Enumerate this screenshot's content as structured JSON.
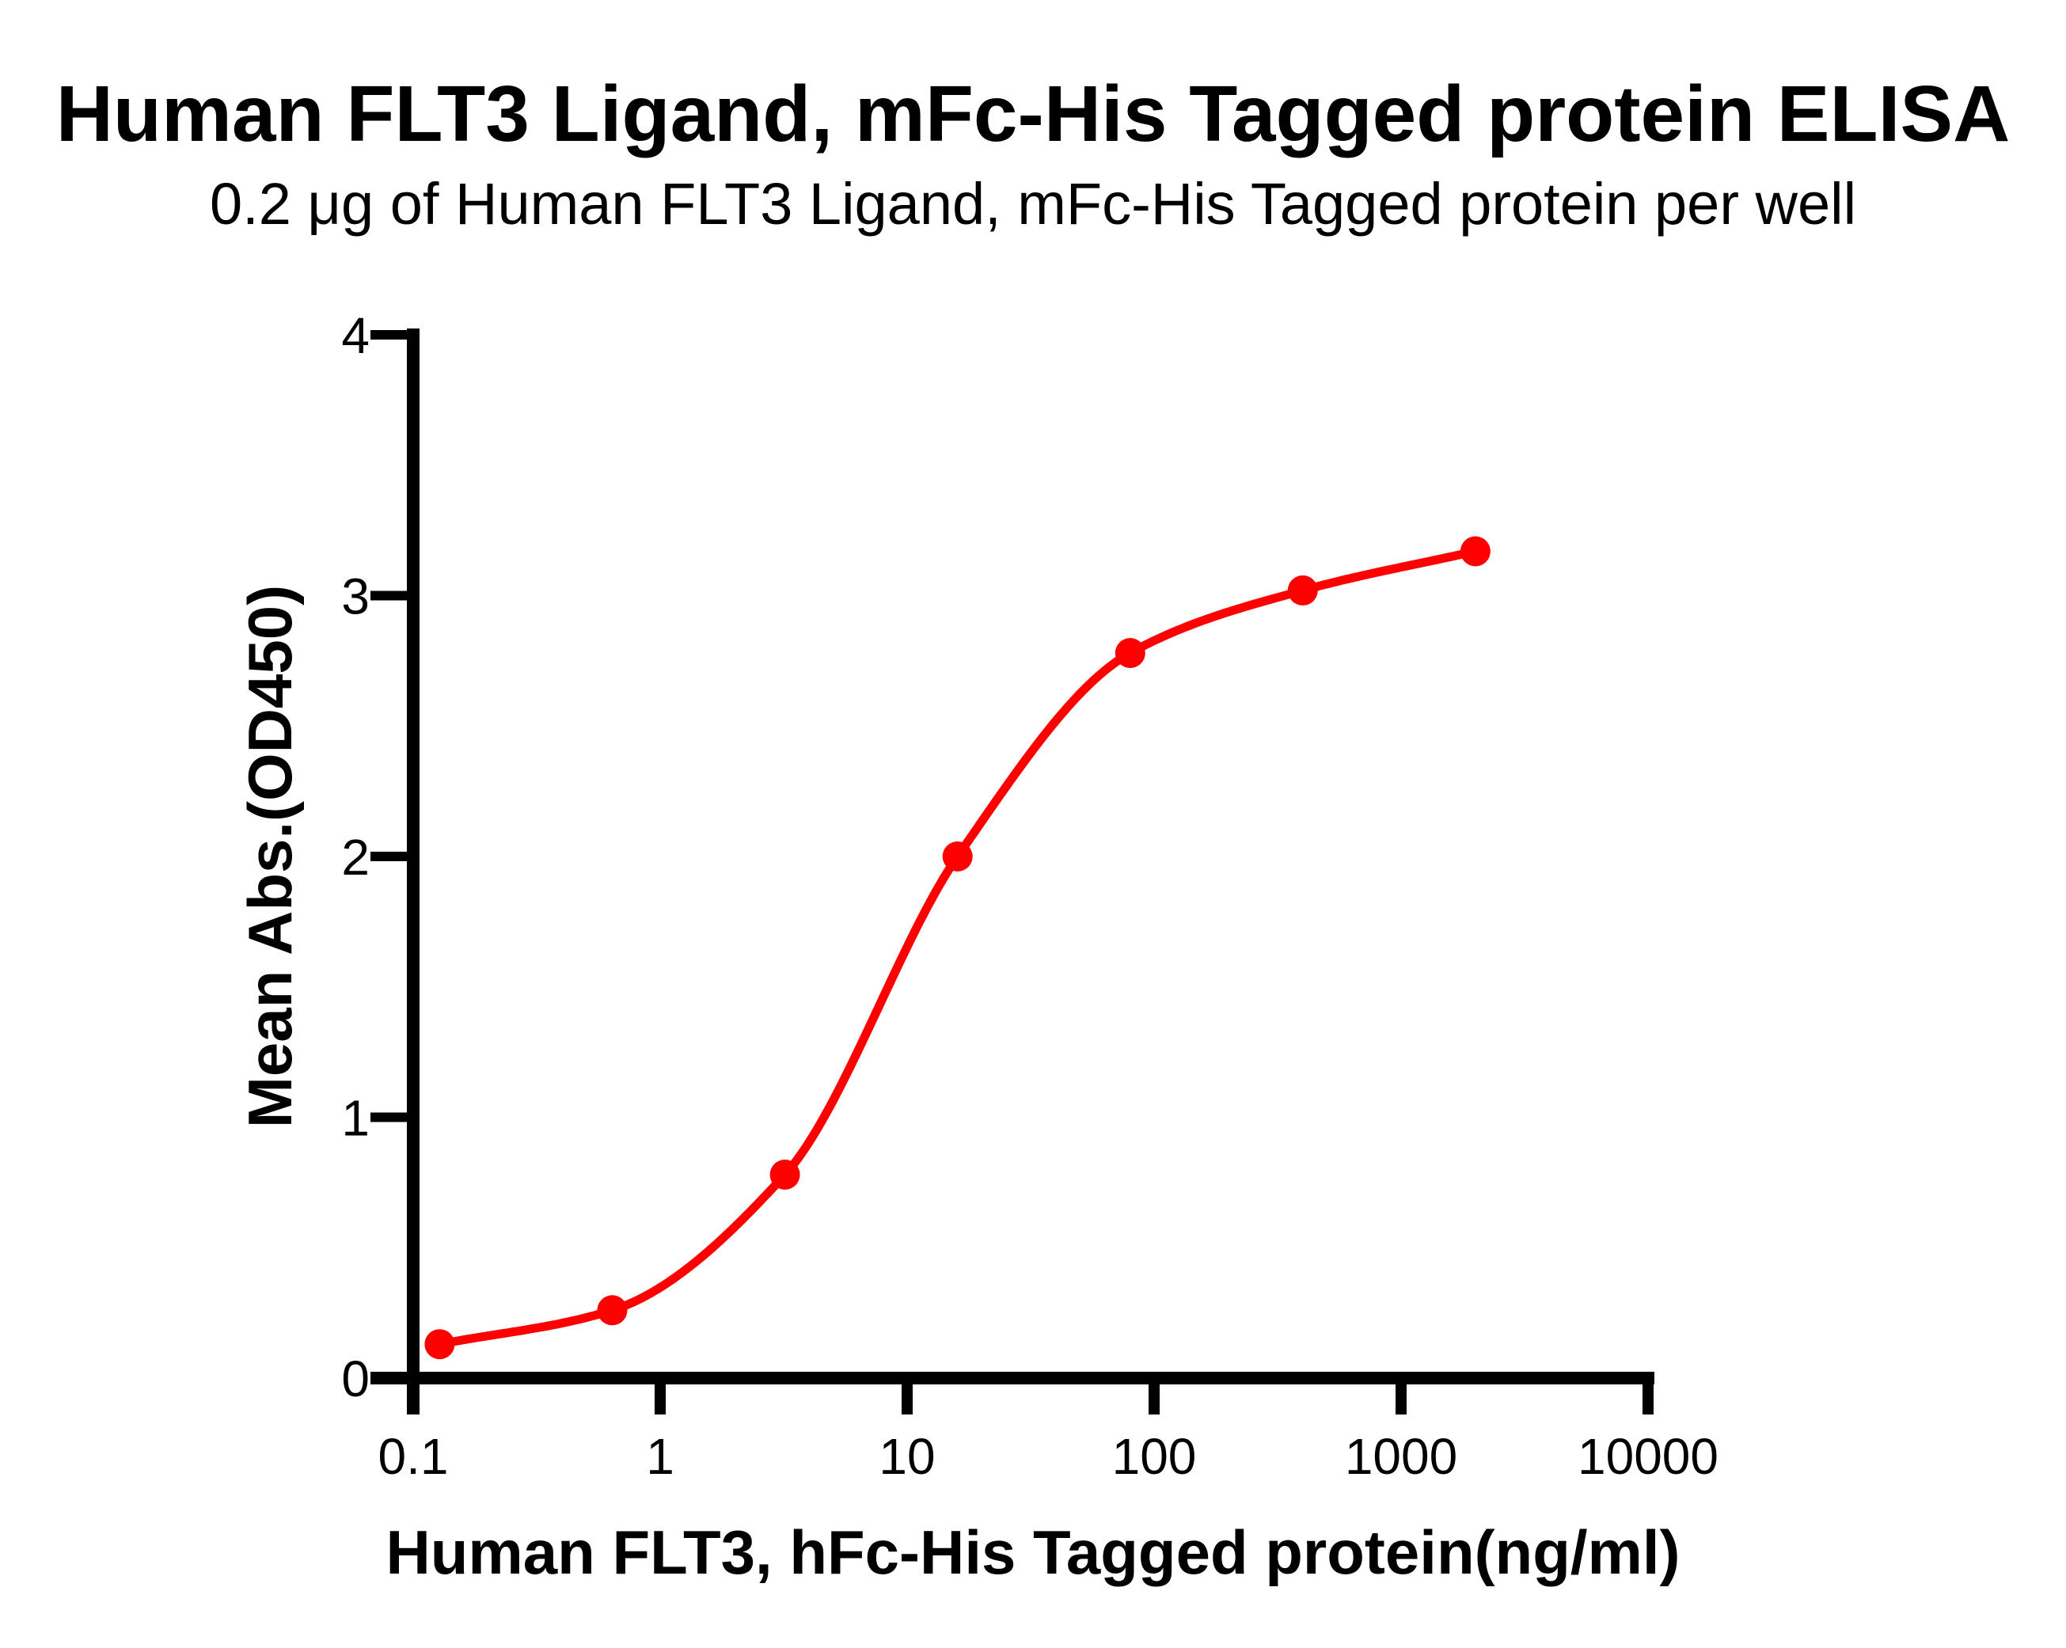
{
  "page": {
    "background_color": "#ffffff",
    "text_color": "#000000",
    "accent_color": "#ff0000"
  },
  "chart_data": {
    "type": "scatter",
    "title": "Human FLT3 Ligand, mFc-His Tagged protein ELISA",
    "subtitle": "0.2 μg of Human FLT3 Ligand, mFc-His Tagged protein per well",
    "xlabel": "Human FLT3, hFc-His Tagged protein(ng/ml)",
    "ylabel": "Mean Abs.(OD450)",
    "x_scale": "log10",
    "xlim": [
      0.1,
      10000
    ],
    "ylim": [
      0,
      4
    ],
    "x_ticks": [
      0.1,
      1,
      10,
      100,
      1000,
      10000
    ],
    "x_tick_labels": [
      "0.1",
      "1",
      "10",
      "100",
      "1000",
      "10000"
    ],
    "y_ticks": [
      0,
      1,
      2,
      3,
      4
    ],
    "y_tick_labels": [
      "0",
      "1",
      "2",
      "3",
      "4"
    ],
    "grid": false,
    "legend_position": "none",
    "series": [
      {
        "name": "Human FLT3 Ligand, mFc-His Tagged protein",
        "color": "#ff0000",
        "marker": "filled-circle",
        "curve": "sigmoidal dose-response fit through points",
        "points": [
          {
            "x": 0.128,
            "y": 0.13
          },
          {
            "x": 0.64,
            "y": 0.26
          },
          {
            "x": 3.2,
            "y": 0.78
          },
          {
            "x": 16,
            "y": 2.0
          },
          {
            "x": 80,
            "y": 2.78
          },
          {
            "x": 400,
            "y": 3.02
          },
          {
            "x": 2000,
            "y": 3.17
          }
        ]
      }
    ]
  }
}
